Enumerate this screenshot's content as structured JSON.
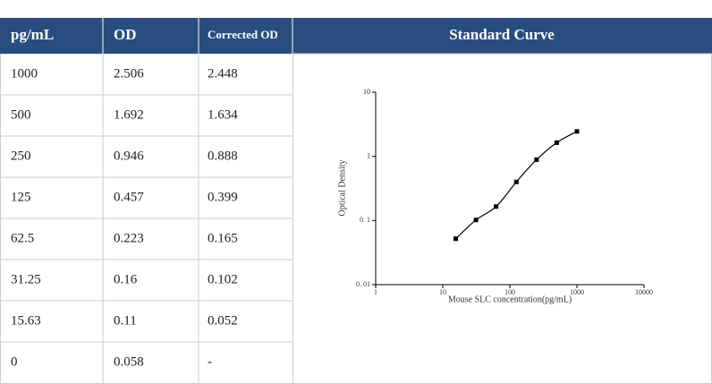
{
  "table": {
    "header": [
      "pg/mL",
      "OD",
      "Corrected OD",
      "Standard Curve"
    ],
    "rows": [
      [
        1000,
        2.506,
        2.448
      ],
      [
        500,
        1.692,
        1.634
      ],
      [
        250,
        0.946,
        0.888
      ],
      [
        125,
        0.457,
        0.399
      ],
      [
        62.5,
        0.223,
        0.165
      ],
      [
        31.25,
        0.16,
        0.102
      ],
      [
        15.63,
        0.11,
        0.052
      ],
      [
        0,
        0.058,
        "-"
      ]
    ]
  },
  "chart": {
    "type": "scatter",
    "xlabel": "Mouse SLC concentration(pg/mL)",
    "ylabel": "Optical Density",
    "xscale": "log",
    "yscale": "log",
    "color": "#000000",
    "xlim": [
      1,
      10000
    ],
    "xticks": [
      1,
      10,
      100,
      1000,
      10000
    ],
    "ylim": [
      0.01,
      10
    ],
    "yticks": [
      {
        "value": 0.01,
        "label": "0. 01"
      },
      {
        "value": 0.1,
        "label": "0. 1"
      },
      1,
      10
    ]
  }
}
